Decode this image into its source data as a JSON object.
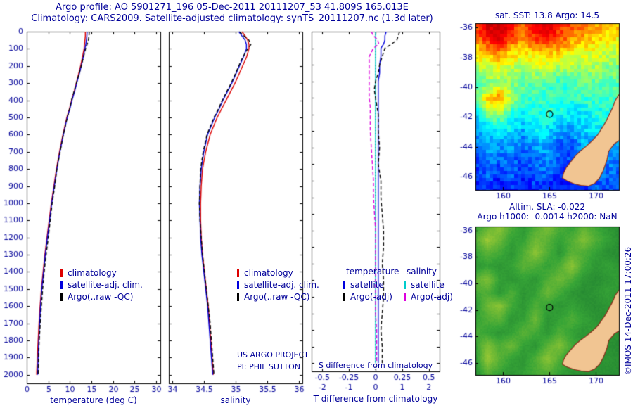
{
  "header": {
    "line1": "Argo profile: AO 5901271_196 05-Dec-2011 20111207_53 41.809S 165.013E",
    "line2": "Climatology: CARS2009. Satellite-adjusted climatology: synTS_20111207.nc (1.3d later)"
  },
  "annotations": {
    "project_line1": "US ARGO PROJECT",
    "project_line2": "PI: PHIL SUTTON",
    "copyright": "©IMOS 14-Dec-2011 17:00:26"
  },
  "colors": {
    "text": "#000099",
    "land": "#f1c592",
    "coast": "#8a2a1a"
  },
  "coastline": [
    [
      172.6,
      -40.4
    ],
    [
      172.1,
      -40.9
    ],
    [
      171.8,
      -41.4
    ],
    [
      171.4,
      -41.9
    ],
    [
      171.1,
      -42.3
    ],
    [
      170.7,
      -42.7
    ],
    [
      170.2,
      -43.2
    ],
    [
      169.6,
      -43.6
    ],
    [
      168.9,
      -44.0
    ],
    [
      168.3,
      -44.3
    ],
    [
      167.8,
      -44.6
    ],
    [
      167.3,
      -45.0
    ],
    [
      166.8,
      -45.4
    ],
    [
      166.5,
      -45.8
    ],
    [
      166.4,
      -46.1
    ],
    [
      166.9,
      -46.3
    ],
    [
      167.7,
      -46.5
    ],
    [
      168.4,
      -46.6
    ],
    [
      169.2,
      -46.65
    ],
    [
      169.9,
      -46.45
    ],
    [
      170.4,
      -46.1
    ],
    [
      170.8,
      -45.6
    ],
    [
      171.2,
      -44.9
    ],
    [
      171.4,
      -44.3
    ],
    [
      172.0,
      -43.8
    ],
    [
      172.7,
      -43.5
    ],
    [
      173.2,
      -42.8
    ],
    [
      173.4,
      -41.5
    ],
    [
      173.4,
      -40.4
    ]
  ],
  "chart_data": [
    {
      "type": "line",
      "panel": "temperature-profile",
      "xlabel": "temperature (deg C)",
      "xlim": [
        0,
        31
      ],
      "xticks": [
        0,
        5,
        10,
        15,
        20,
        25,
        30
      ],
      "ylim": [
        0,
        2050
      ],
      "yticks": [
        0,
        100,
        200,
        300,
        400,
        500,
        600,
        700,
        800,
        900,
        1000,
        1100,
        1200,
        1300,
        1400,
        1500,
        1600,
        1700,
        1800,
        1900,
        2000
      ],
      "depths": [
        0,
        25,
        50,
        75,
        100,
        150,
        200,
        250,
        300,
        350,
        400,
        450,
        500,
        600,
        700,
        800,
        900,
        1000,
        1100,
        1200,
        1300,
        1400,
        1500,
        1600,
        1700,
        1800,
        1900,
        2000
      ],
      "series": [
        {
          "name": "climatology",
          "color": "#dd0000",
          "dashed": false,
          "values": [
            13.6,
            13.6,
            13.5,
            13.4,
            13.3,
            12.9,
            12.5,
            12.0,
            11.5,
            11.0,
            10.4,
            9.9,
            9.3,
            8.4,
            7.6,
            6.9,
            6.3,
            5.7,
            5.2,
            4.7,
            4.2,
            3.8,
            3.4,
            3.1,
            2.85,
            2.65,
            2.45,
            2.3
          ]
        },
        {
          "name": "satellite-adj. clim.",
          "color": "#0000dd",
          "dashed": false,
          "values": [
            14.0,
            13.95,
            13.85,
            13.7,
            13.5,
            13.1,
            12.65,
            12.15,
            11.6,
            11.1,
            10.5,
            10.0,
            9.4,
            8.5,
            7.7,
            7.0,
            6.4,
            5.8,
            5.3,
            4.8,
            4.3,
            3.9,
            3.5,
            3.2,
            3.0,
            2.8,
            2.65,
            2.55
          ]
        },
        {
          "name": "Argo(..raw -QC)",
          "color": "#000000",
          "dashed": true,
          "values": [
            14.5,
            14.45,
            14.3,
            14.0,
            13.65,
            13.15,
            12.65,
            12.1,
            11.5,
            10.95,
            10.4,
            9.95,
            9.4,
            8.5,
            7.75,
            7.0,
            6.5,
            5.9,
            5.45,
            5.0,
            4.5,
            4.05,
            3.7,
            3.4,
            3.15,
            2.9,
            2.75,
            2.65
          ]
        }
      ]
    },
    {
      "type": "line",
      "panel": "salinity-profile",
      "xlabel": "salinity",
      "xlim": [
        33.95,
        36.05
      ],
      "xticks": [
        34,
        34.5,
        35,
        35.5,
        36
      ],
      "ylim": [
        0,
        2050
      ],
      "yticks": [
        0,
        100,
        200,
        300,
        400,
        500,
        600,
        700,
        800,
        900,
        1000,
        1100,
        1200,
        1300,
        1400,
        1500,
        1600,
        1700,
        1800,
        1900,
        2000
      ],
      "depths": [
        0,
        25,
        50,
        75,
        100,
        150,
        200,
        250,
        300,
        350,
        400,
        450,
        500,
        600,
        700,
        800,
        900,
        1000,
        1100,
        1200,
        1300,
        1400,
        1500,
        1600,
        1700,
        1800,
        1900,
        2000
      ],
      "series": [
        {
          "name": "climatology",
          "color": "#dd0000",
          "dashed": false,
          "values": [
            35.1,
            35.15,
            35.19,
            35.21,
            35.21,
            35.17,
            35.11,
            35.05,
            34.99,
            34.92,
            34.85,
            34.78,
            34.71,
            34.6,
            34.53,
            34.48,
            34.46,
            34.45,
            34.45,
            34.46,
            34.48,
            34.51,
            34.54,
            34.57,
            34.59,
            34.61,
            34.63,
            34.65
          ]
        },
        {
          "name": "satellite-adj. clim.",
          "color": "#0000dd",
          "dashed": false,
          "values": [
            35.05,
            35.1,
            35.15,
            35.17,
            35.17,
            35.12,
            35.06,
            35.0,
            34.94,
            34.87,
            34.8,
            34.74,
            34.67,
            34.56,
            34.5,
            34.46,
            34.44,
            34.43,
            34.44,
            34.45,
            34.47,
            34.5,
            34.53,
            34.56,
            34.58,
            34.6,
            34.62,
            34.64
          ]
        },
        {
          "name": "Argo(..raw -QC)",
          "color": "#000000",
          "dashed": true,
          "values": [
            35.06,
            35.13,
            35.21,
            35.24,
            35.19,
            35.11,
            35.05,
            34.99,
            34.93,
            34.86,
            34.79,
            34.73,
            34.66,
            34.55,
            34.49,
            34.45,
            34.44,
            34.43,
            34.44,
            34.46,
            34.48,
            34.51,
            34.54,
            34.57,
            34.6,
            34.62,
            34.64,
            34.66
          ]
        }
      ]
    },
    {
      "type": "line",
      "panel": "difference-profile",
      "t_xlabel": "T difference from climatology",
      "s_xlabel": "S difference from climatology",
      "t_xlim": [
        -2.4,
        2.4
      ],
      "t_xticks": [
        -2,
        -1,
        0,
        1,
        2
      ],
      "s_xlim": [
        -0.6,
        0.6
      ],
      "s_xticks": [
        -0.5,
        -0.25,
        0,
        0.25,
        0.5
      ],
      "ylim": [
        0,
        2050
      ],
      "yticks": [
        0,
        100,
        200,
        300,
        400,
        500,
        600,
        700,
        800,
        900,
        1000,
        1100,
        1200,
        1300,
        1400,
        1500,
        1600,
        1700,
        1800,
        1900,
        2000
      ],
      "depths": [
        0,
        25,
        50,
        75,
        100,
        150,
        200,
        250,
        300,
        350,
        400,
        450,
        500,
        600,
        700,
        800,
        900,
        1000,
        1100,
        1200,
        1300,
        1400,
        1500,
        1600,
        1700,
        1800,
        1900,
        2000
      ],
      "series": [
        {
          "name": "satellite",
          "group": "temperature",
          "color": "#0000dd",
          "dashed": false,
          "scale": "t",
          "z": 1,
          "values": [
            0.4,
            0.35,
            0.35,
            0.3,
            0.2,
            0.2,
            0.15,
            0.15,
            0.1,
            0.1,
            0.1,
            0.1,
            0.1,
            0.1,
            0.1,
            0.1,
            0.1,
            0.1,
            0.1,
            0.1,
            0.1,
            0.1,
            0.1,
            0.1,
            0.1,
            0.1,
            0.1,
            0.1
          ]
        },
        {
          "name": "Argo(-adj)",
          "group": "temperature",
          "color": "#000000",
          "dashed": true,
          "scale": "t",
          "z": 4,
          "values": [
            0.9,
            0.85,
            0.8,
            0.6,
            0.35,
            0.25,
            0.15,
            0.1,
            0.0,
            -0.05,
            0.0,
            0.05,
            0.1,
            0.1,
            0.15,
            0.1,
            0.2,
            0.2,
            0.25,
            0.3,
            0.3,
            0.25,
            0.3,
            0.3,
            0.25,
            0.2,
            0.25,
            0.25
          ]
        },
        {
          "name": "satellite",
          "group": "salinity",
          "color": "#00cccc",
          "dashed": false,
          "scale": "s",
          "z": 2,
          "values": [
            0,
            0,
            0,
            0,
            0,
            0,
            0,
            0,
            0,
            0,
            0,
            0,
            0,
            0,
            0,
            0,
            0,
            0,
            0,
            0,
            0,
            0,
            0,
            0,
            0,
            0,
            0,
            0
          ]
        },
        {
          "name": "Argo(-adj)",
          "group": "salinity",
          "color": "#dd00dd",
          "dashed": true,
          "scale": "s",
          "z": 3,
          "values": [
            -0.04,
            -0.02,
            0.02,
            0.03,
            -0.02,
            -0.06,
            -0.06,
            -0.06,
            -0.06,
            -0.06,
            -0.06,
            -0.05,
            -0.05,
            -0.05,
            -0.04,
            -0.03,
            -0.02,
            -0.02,
            -0.01,
            0.0,
            0.0,
            0.0,
            0.0,
            0.0,
            0.0,
            0.01,
            0.01,
            0.01
          ]
        }
      ]
    },
    {
      "type": "heatmap",
      "panel": "sst-map",
      "title": "sat. SST: 13.8 Argo: 14.5",
      "colormap": "jet",
      "style": "blocky",
      "lon_range": [
        157,
        172.5
      ],
      "lat_range": [
        -35.7,
        -46.9
      ],
      "xticks": [
        160,
        165,
        170
      ],
      "yticks": [
        -36,
        -38,
        -40,
        -42,
        -44,
        -46
      ],
      "value_range": [
        7,
        22
      ],
      "marker": {
        "lon": 165.01,
        "lat": -41.81
      },
      "lons": [
        157,
        158.3,
        159.6,
        160.9,
        162.2,
        163.5,
        164.8,
        166.1,
        167.4,
        168.7,
        170,
        171.3,
        172.6
      ],
      "lats": [
        -35.7,
        -36.7,
        -37.7,
        -38.7,
        -39.7,
        -40.7,
        -41.7,
        -42.7,
        -43.7,
        -44.7,
        -45.7,
        -46.9
      ],
      "values": [
        [
          19,
          21.5,
          22,
          20,
          19,
          21,
          21.5,
          19.5,
          19,
          18.5,
          18,
          17.5,
          17.5
        ],
        [
          18,
          20,
          21,
          19,
          18,
          19.5,
          20,
          19,
          18,
          17.5,
          17,
          16.5,
          16.5
        ],
        [
          16.5,
          17.5,
          18,
          17,
          16.5,
          17,
          17,
          17,
          16.5,
          16,
          16,
          15.5,
          15.5
        ],
        [
          15,
          15.5,
          16,
          15.5,
          15,
          15.5,
          15.5,
          15,
          15,
          15,
          15,
          14.5,
          14.5
        ],
        [
          14,
          14.5,
          15,
          14.5,
          14,
          14,
          14,
          13.5,
          14,
          14,
          14,
          14,
          14
        ],
        [
          13.5,
          17,
          18,
          15,
          13.5,
          13.5,
          13.5,
          13,
          13,
          13.5,
          13.5,
          13.5,
          13.5
        ],
        [
          12.5,
          14.5,
          15,
          13.5,
          12.5,
          13,
          13.5,
          13,
          12.5,
          12.5,
          13,
          13,
          13
        ],
        [
          11.5,
          12.5,
          12.5,
          12.5,
          11.5,
          12.5,
          12.5,
          11.5,
          11.5,
          12,
          12.5,
          12.5,
          12.5
        ],
        [
          10.5,
          11.5,
          11.5,
          11.5,
          10.5,
          11.5,
          11.5,
          10.5,
          10.5,
          11.5,
          11.5,
          11.5,
          11.5
        ],
        [
          10,
          11,
          10.5,
          10.5,
          10,
          10.5,
          11,
          10,
          10,
          10.5,
          11,
          11,
          11
        ],
        [
          9.5,
          10.5,
          9.5,
          10.5,
          9.5,
          10.5,
          10.5,
          9.5,
          9.5,
          10.5,
          10.5,
          10.5,
          10.5
        ],
        [
          9,
          9.5,
          9,
          9.5,
          9,
          9.5,
          9.5,
          9,
          9,
          9.5,
          10,
          10,
          10
        ]
      ]
    },
    {
      "type": "heatmap",
      "panel": "sla-map",
      "title1": "Altim. SLA: -0.022",
      "title2": "Argo h1000: -0.0014 h2000: NaN",
      "colormap": "green",
      "style": "smooth",
      "lon_range": [
        157,
        172.5
      ],
      "lat_range": [
        -35.7,
        -46.9
      ],
      "xticks": [
        160,
        165,
        170
      ],
      "yticks": [
        -36,
        -38,
        -40,
        -42,
        -44,
        -46
      ],
      "value_range": [
        -0.1,
        0.3
      ],
      "marker": {
        "lon": 165.01,
        "lat": -41.81
      },
      "lons": [
        157,
        158.3,
        159.6,
        160.9,
        162.2,
        163.5,
        164.8,
        166.1,
        167.4,
        168.7,
        170,
        171.3,
        172.6
      ],
      "lats": [
        -35.7,
        -36.7,
        -37.7,
        -38.7,
        -39.7,
        -40.7,
        -41.7,
        -42.7,
        -43.7,
        -44.7,
        -45.7,
        -46.9
      ],
      "values": [
        [
          0.05,
          0.12,
          0.2,
          0.1,
          0.02,
          0.1,
          0.18,
          0.1,
          0.05,
          0.12,
          0.08,
          0.02,
          0.0
        ],
        [
          0.1,
          0.22,
          0.15,
          0.05,
          0.05,
          0.15,
          0.12,
          0.05,
          0.1,
          0.18,
          0.1,
          0.05,
          0.0
        ],
        [
          0.05,
          0.12,
          0.08,
          0.02,
          0.1,
          0.2,
          0.1,
          0.02,
          0.12,
          0.1,
          0.05,
          0.0,
          0.0
        ],
        [
          0.02,
          0.05,
          0.02,
          0.05,
          0.12,
          0.1,
          0.05,
          0.1,
          0.2,
          0.08,
          0.02,
          0.05,
          0.02
        ],
        [
          0.12,
          0.18,
          0.05,
          0.02,
          0.05,
          0.02,
          0.1,
          0.15,
          0.1,
          0.02,
          0.0,
          0.02,
          0.05
        ],
        [
          0.08,
          0.1,
          0.02,
          0.1,
          0.02,
          0.05,
          0.15,
          0.08,
          0.02,
          0.0,
          0.02,
          0.05,
          0.02
        ],
        [
          0.02,
          0.15,
          0.2,
          0.08,
          0.02,
          0.1,
          0.05,
          0.02,
          0.05,
          0.02,
          0.0,
          0.02,
          0.0
        ],
        [
          0.05,
          0.1,
          0.12,
          0.02,
          0.05,
          0.15,
          0.02,
          0.05,
          0.1,
          0.05,
          0.02,
          0.0,
          0.0
        ],
        [
          0.1,
          0.05,
          0.02,
          0.05,
          0.12,
          0.08,
          0.02,
          0.1,
          0.05,
          0.02,
          0.05,
          0.02,
          0.0
        ],
        [
          0.05,
          0.18,
          0.1,
          0.15,
          0.05,
          0.02,
          0.12,
          0.18,
          0.08,
          0.02,
          0.02,
          0.0,
          0.0
        ],
        [
          0.02,
          0.22,
          0.12,
          0.05,
          0.02,
          0.1,
          0.2,
          0.1,
          0.02,
          0.05,
          0.0,
          0.02,
          0.0
        ],
        [
          0.0,
          0.1,
          0.05,
          0.02,
          0.05,
          0.08,
          0.1,
          0.05,
          0.02,
          0.0,
          0.02,
          0.0,
          0.0
        ]
      ]
    }
  ]
}
